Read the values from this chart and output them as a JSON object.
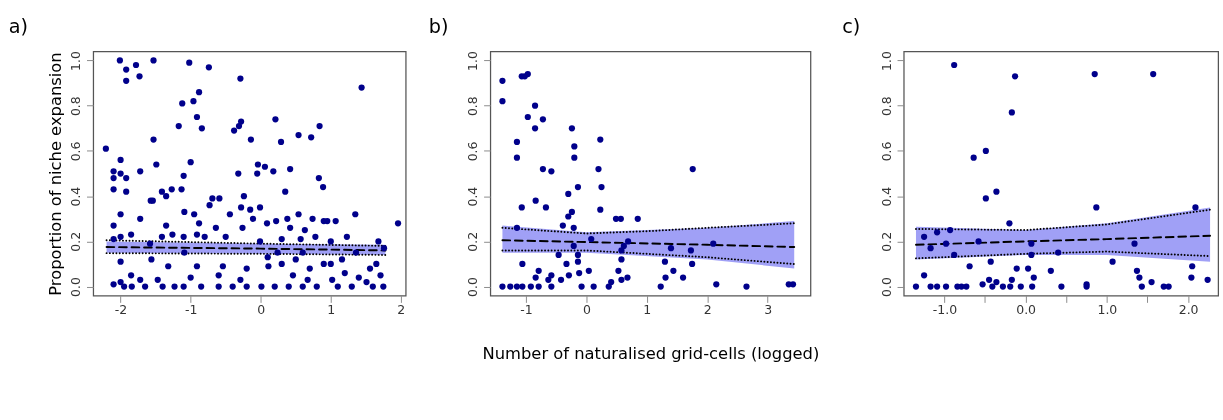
{
  "chart_data": [
    {
      "type": "scatter",
      "title": "a)",
      "ylabel": "Proportion of niche expansion",
      "grid": false,
      "xlim": [
        -2.39,
        2.07
      ],
      "xticks": [
        -2,
        -1,
        0,
        1,
        2
      ],
      "ylim": [
        -0.04,
        1.04
      ],
      "yticks": [
        {
          "value": 0,
          "label": "0.0"
        },
        {
          "value": 0.2,
          "label": "0.2"
        },
        {
          "value": 0.4,
          "label": "0.4"
        },
        {
          "value": 0.6,
          "label": "0.6"
        },
        {
          "value": 0.8,
          "label": "0.8"
        },
        {
          "value": 1,
          "label": "1.0"
        }
      ],
      "series": [
        {
          "type": "line",
          "line_style": "dotted",
          "color": "#000000",
          "x": [
            -2.2,
            0,
            1.78
          ],
          "values": [
            0.205,
            0.19,
            0.18
          ]
        },
        {
          "type": "line",
          "line_style": "dotted",
          "color": "#000000",
          "x": [
            -2.2,
            0,
            1.78
          ],
          "values": [
            0.148,
            0.145,
            0.14
          ]
        },
        {
          "type": "line",
          "line_style": "dashed",
          "color": "#000000",
          "x": [
            -2.2,
            0,
            1.78
          ],
          "values": [
            0.175,
            0.168,
            0.16
          ],
          "lower": [
            0.15,
            0.145,
            0.14
          ],
          "upper": [
            0.2,
            0.19,
            0.185
          ]
        },
        {
          "marker": "circle",
          "color": "#00008b",
          "x": [
            -2.21,
            -2.1,
            -2.1,
            -2.1,
            -2.1,
            -2.1,
            -2.1,
            -2.01,
            -2.0,
            -2.0,
            -2.0,
            -2.0,
            -2.0,
            -2.0,
            -1.92,
            -1.92,
            -1.92,
            -1.92,
            -1.85,
            -1.85,
            -1.84,
            -1.78,
            -1.73,
            -1.72,
            -1.72,
            -1.72,
            -1.57,
            -1.53,
            -1.53,
            -1.54,
            -1.58,
            -1.56,
            -1.49,
            -1.47,
            -1.41,
            -1.41,
            -1.35,
            -1.35,
            -1.32,
            -1.27,
            -1.26,
            -1.23,
            -1.17,
            -1.13,
            -1.12,
            -1.1,
            -1.09,
            -1.1,
            -1.09,
            -1.02,
            -1.0,
            -0.96,
            -0.91,
            -0.88,
            -0.95,
            -0.91,
            -0.91,
            -0.88,
            -0.84,
            -0.74,
            -0.8,
            -0.73,
            -0.69,
            -0.64,
            -0.59,
            -0.54,
            -0.5,
            -0.44,
            -0.38,
            -0.32,
            -0.31,
            -0.29,
            -0.28,
            -0.26,
            -0.24,
            -0.28,
            -0.29,
            -0.14,
            -0.15,
            -0.11,
            -0.05,
            -0.04,
            -0.01,
            -0.01,
            0.01,
            0.06,
            0.09,
            0.11,
            0.18,
            0.21,
            0.22,
            0.24,
            0.29,
            0.3,
            0.35,
            0.38,
            0.42,
            0.42,
            0.46,
            0.54,
            0.54,
            0.57,
            0.63,
            0.67,
            0.72,
            0.74,
            0.78,
            0.83,
            0.84,
            0.89,
            0.9,
            0.95,
            1.0,
            1.02,
            1.07,
            1.16,
            1.23,
            1.35,
            1.36,
            1.44,
            1.51,
            1.56,
            1.65,
            1.68,
            1.71,
            1.75,
            1.76,
            1.96,
            -1.95,
            -1.65,
            -1.4,
            -1.1,
            -0.85,
            -0.6,
            -0.4,
            -0.2,
            0.2,
            0.4,
            0.6,
            0.8,
            1.1,
            1.3,
            1.6,
            -0.6,
            -0.2,
            0.3,
            0.5,
            0.7,
            0.9,
            1.2,
            1.4,
            -1.0,
            0.1,
            0.6,
            1.0
          ],
          "values": [
            0.61,
            0.27,
            0.01,
            0.43,
            0.48,
            0.51,
            0.21,
            1.0,
            0.56,
            0.5,
            0.32,
            0.22,
            0.11,
            0.02,
            0.96,
            0.91,
            0.48,
            0.42,
            0.23,
            0.05,
            0.0,
            0.98,
            0.93,
            0.51,
            0.3,
            0.03,
            0.38,
            1.0,
            0.65,
            0.38,
            0.19,
            0.12,
            0.54,
            0.03,
            0.22,
            0.42,
            0.4,
            0.27,
            0.09,
            0.43,
            0.23,
            0.0,
            0.71,
            0.43,
            0.81,
            0.49,
            0.33,
            0.22,
            0.15,
            0.99,
            0.55,
            0.82,
            0.75,
            0.86,
            0.32,
            0.23,
            0.09,
            0.28,
            0.7,
            0.97,
            0.22,
            0.36,
            0.39,
            0.26,
            0.39,
            0.09,
            0.22,
            0.32,
            0.69,
            0.5,
            0.71,
            0.92,
            0.73,
            0.26,
            0.4,
            0.35,
            0.03,
            0.65,
            0.34,
            0.3,
            0.5,
            0.54,
            0.35,
            0.2,
            0.0,
            0.53,
            0.28,
            0.09,
            0.51,
            0.74,
            0.29,
            0.15,
            0.64,
            0.21,
            0.42,
            0.3,
            0.52,
            0.26,
            0.05,
            0.32,
            0.67,
            0.21,
            0.25,
            0.03,
            0.66,
            0.3,
            0.22,
            0.48,
            0.71,
            0.44,
            0.29,
            0.29,
            0.2,
            0.03,
            0.29,
            0.12,
            0.22,
            0.32,
            0.15,
            0.88,
            0.02,
            0.08,
            0.1,
            0.2,
            0.05,
            0.0,
            0.17,
            0.28,
            0.0,
            0.0,
            0.0,
            0.0,
            0.0,
            0.0,
            0.0,
            0.0,
            0.0,
            0.0,
            0.0,
            0.0,
            0.0,
            0.0,
            0.0,
            0.05,
            0.08,
            0.1,
            0.12,
            0.08,
            0.1,
            0.06,
            0.04,
            0.04,
            0.13,
            0.15,
            0.1
          ]
        }
      ]
    },
    {
      "type": "scatter",
      "title": "b)",
      "xlabel": "Number of naturalised grid-cells (logged)",
      "grid": false,
      "xlim": [
        -1.59,
        3.71
      ],
      "xticks": [
        -1,
        0,
        1,
        2,
        3
      ],
      "ylim": [
        -0.04,
        1.04
      ],
      "yticks": [
        {
          "value": 0,
          "label": "0.0"
        },
        {
          "value": 0.2,
          "label": "0.2"
        },
        {
          "value": 0.4,
          "label": "0.4"
        },
        {
          "value": 0.6,
          "label": "0.6"
        },
        {
          "value": 0.8,
          "label": "0.8"
        },
        {
          "value": 1,
          "label": "1.0"
        }
      ],
      "series": [
        {
          "type": "line",
          "line_style": "dotted",
          "color": "#000000",
          "x": [
            -1.39,
            0,
            1,
            2,
            3.44
          ],
          "values": [
            0.26,
            0.235,
            0.245,
            0.26,
            0.28
          ]
        },
        {
          "type": "line",
          "line_style": "dotted",
          "color": "#000000",
          "x": [
            -1.39,
            0,
            1,
            2,
            3.44
          ],
          "values": [
            0.16,
            0.16,
            0.145,
            0.13,
            0.1
          ]
        },
        {
          "type": "line",
          "line_style": "dashed",
          "color": "#000000",
          "x": [
            -1.39,
            0,
            2,
            3.44
          ],
          "values": [
            0.205,
            0.197,
            0.185,
            0.175
          ],
          "lower": [
            0.15,
            0.15,
            0.12,
            0.08
          ],
          "upper": [
            0.27,
            0.24,
            0.26,
            0.29
          ]
        },
        {
          "marker": "circle",
          "color": "#00008b",
          "x": [
            -1.39,
            -1.39,
            -1.39,
            -1.26,
            -1.15,
            -1.15,
            -1.15,
            -1.15,
            -1.07,
            -1.06,
            -1.07,
            -1.02,
            -0.97,
            -0.97,
            -1.06,
            -0.92,
            -0.85,
            -0.85,
            -0.84,
            -0.84,
            -0.79,
            -0.72,
            -0.72,
            -0.67,
            -0.58,
            -0.79,
            -0.63,
            -0.58,
            -0.58,
            -0.46,
            -0.42,
            -0.39,
            -0.33,
            -0.3,
            -0.3,
            -0.29,
            -0.24,
            -0.24,
            -0.21,
            -0.21,
            -0.2,
            -0.2,
            -0.14,
            -0.14,
            -0.14,
            -0.12,
            -0.08,
            0.04,
            0.08,
            0.12,
            0.2,
            0.25,
            0.23,
            0.23,
            0.37,
            0.41,
            0.49,
            0.57,
            0.53,
            0.58,
            0.58,
            0.58,
            0.62,
            0.68,
            0.69,
            0.85,
            1.23,
            1.3,
            1.31,
            1.4,
            1.44,
            1.6,
            1.73,
            1.76,
            1.75,
            2.1,
            2.15,
            2.65,
            3.35,
            3.42
          ],
          "values": [
            0.91,
            0.82,
            0.0,
            0.0,
            0.64,
            0.57,
            0.26,
            0.0,
            0.35,
            0.1,
            0.93,
            0.93,
            0.94,
            0.75,
            0.0,
            0.0,
            0.8,
            0.7,
            0.38,
            0.04,
            0.07,
            0.74,
            0.52,
            0.35,
            0.51,
            0.0,
            0.03,
            0.05,
            0.0,
            0.14,
            0.03,
            0.27,
            0.1,
            0.41,
            0.31,
            0.05,
            0.33,
            0.7,
            0.26,
            0.18,
            0.62,
            0.57,
            0.44,
            0.14,
            0.11,
            0.06,
            0.0,
            0.07,
            0.21,
            0.0,
            0.52,
            0.44,
            0.65,
            0.34,
            0.0,
            0.02,
            0.3,
            0.3,
            0.07,
            0.12,
            0.16,
            0.03,
            0.18,
            0.04,
            0.2,
            0.3,
            0.0,
            0.11,
            0.04,
            0.17,
            0.07,
            0.04,
            0.16,
            0.52,
            0.1,
            0.19,
            0.01,
            0.0,
            0.01,
            0.01
          ]
        }
      ]
    },
    {
      "type": "scatter",
      "title": "c)",
      "grid": false,
      "xlim": [
        -1.5,
        2.37
      ],
      "xticks": [
        {
          "value": -1,
          "label": "-1.0"
        },
        {
          "value": -0.5,
          "label": null
        },
        {
          "value": 0,
          "label": "0.0"
        },
        {
          "value": 0.5,
          "label": null
        },
        {
          "value": 1,
          "label": "1.0"
        },
        {
          "value": 1.5,
          "label": null
        },
        {
          "value": 2,
          "label": "2.0"
        }
      ],
      "ylim": [
        -0.04,
        1.04
      ],
      "yticks": [
        {
          "value": 0,
          "label": "0.0"
        },
        {
          "value": 0.2,
          "label": "0.2"
        },
        {
          "value": 0.4,
          "label": "0.4"
        },
        {
          "value": 0.6,
          "label": "0.6"
        },
        {
          "value": 0.8,
          "label": "0.8"
        },
        {
          "value": 1,
          "label": "1.0"
        }
      ],
      "series": [
        {
          "type": "line",
          "line_style": "dotted",
          "color": "#000000",
          "x": [
            -1.35,
            0,
            1,
            2.27
          ],
          "values": [
            0.255,
            0.25,
            0.275,
            0.34
          ]
        },
        {
          "type": "line",
          "line_style": "dotted",
          "color": "#000000",
          "x": [
            -1.35,
            0,
            1,
            2.27
          ],
          "values": [
            0.125,
            0.145,
            0.155,
            0.135
          ]
        },
        {
          "type": "line",
          "line_style": "dashed",
          "color": "#000000",
          "x": [
            -1.35,
            0,
            1,
            2.27
          ],
          "values": [
            0.185,
            0.2,
            0.21,
            0.225
          ],
          "lower": [
            0.12,
            0.14,
            0.14,
            0.11
          ],
          "upper": [
            0.265,
            0.25,
            0.28,
            0.35
          ]
        },
        {
          "marker": "circle",
          "color": "#00008b",
          "x": [
            -1.35,
            -1.25,
            -1.25,
            -1.17,
            -1.17,
            -1.09,
            -1.09,
            -0.98,
            -0.98,
            -0.93,
            -0.88,
            -0.88,
            -0.84,
            -0.79,
            -0.73,
            -0.69,
            -0.64,
            -0.58,
            -0.53,
            -0.49,
            -0.49,
            -0.45,
            -0.43,
            -0.41,
            -0.36,
            -0.36,
            -0.28,
            -0.2,
            -0.19,
            -0.17,
            -0.17,
            -0.13,
            -0.11,
            -0.06,
            0.03,
            0.07,
            0.07,
            0.08,
            0.1,
            0.31,
            0.4,
            0.44,
            0.75,
            0.75,
            0.85,
            0.87,
            1.07,
            1.34,
            1.37,
            1.4,
            1.43,
            1.55,
            1.57,
            1.7,
            1.76,
            2.04,
            2.05,
            2.09,
            2.24
          ],
          "values": [
            0.0,
            0.22,
            0.05,
            0.17,
            0.0,
            0.24,
            0.0,
            0.19,
            0.0,
            0.25,
            0.98,
            0.14,
            0.0,
            0.0,
            0.0,
            0.09,
            0.57,
            0.2,
            0.01,
            0.6,
            0.39,
            0.03,
            0.11,
            0.0,
            0.42,
            0.02,
            0.0,
            0.28,
            0.0,
            0.03,
            0.77,
            0.93,
            0.08,
            0.0,
            0.08,
            0.19,
            0.14,
            0.0,
            0.04,
            0.07,
            0.15,
            0.0,
            0.01,
            0.0,
            0.94,
            0.35,
            0.11,
            0.19,
            0.07,
            0.04,
            0.0,
            0.02,
            0.94,
            0.0,
            0.0,
            0.04,
            0.09,
            0.35,
            0.03
          ]
        }
      ]
    }
  ]
}
